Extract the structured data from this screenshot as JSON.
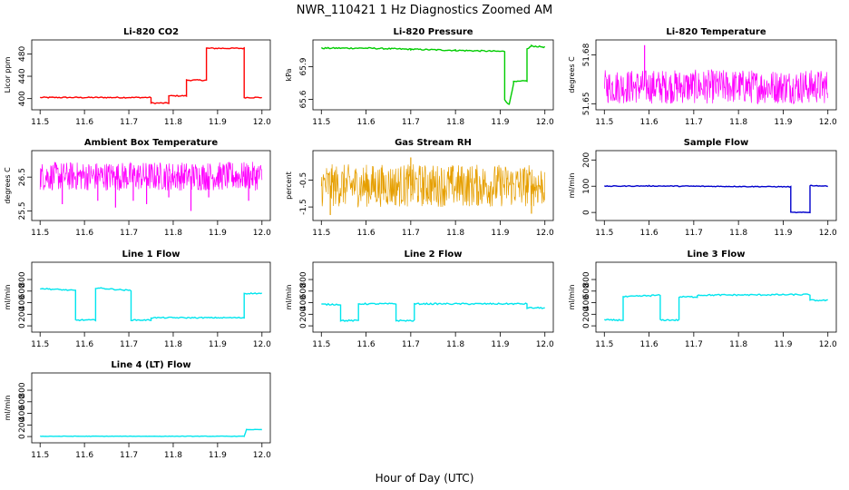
{
  "figure": {
    "title": "NWR_110421  1 Hz Diagnostics Zoomed AM",
    "xlabel": "Hour of Day (UTC)"
  },
  "chart_data": [
    {
      "type": "line",
      "title": "Li-820 CO2",
      "ylabel": "Licor ppm",
      "color": "#ff0000",
      "xlim": [
        11.5,
        12.0
      ],
      "ylim": [
        385,
        500
      ],
      "x_ticks": [
        "11.5",
        "11.6",
        "11.7",
        "11.8",
        "11.9",
        "12.0"
      ],
      "y_ticks": [
        "400",
        "440",
        "480"
      ],
      "noise": 1,
      "series": [
        {
          "x": [
            11.5,
            11.75
          ],
          "y": [
            402,
            402
          ]
        },
        {
          "x": [
            11.75,
            11.79
          ],
          "y": [
            392,
            392
          ]
        },
        {
          "x": [
            11.79,
            11.83
          ],
          "y": [
            405,
            405
          ]
        },
        {
          "x": [
            11.83,
            11.875
          ],
          "y": [
            433,
            433
          ]
        },
        {
          "x": [
            11.875,
            11.96
          ],
          "y": [
            490,
            490
          ]
        },
        {
          "x": [
            11.96,
            12.0
          ],
          "y": [
            402,
            402
          ]
        }
      ]
    },
    {
      "type": "line",
      "title": "Li-820 Pressure",
      "ylabel": "kPa",
      "color": "#00cc00",
      "xlim": [
        11.5,
        12.0
      ],
      "ylim": [
        65.53,
        66.12
      ],
      "x_ticks": [
        "11.5",
        "11.6",
        "11.7",
        "11.8",
        "11.9",
        "12.0"
      ],
      "y_ticks": [
        "65.6",
        "65.9"
      ],
      "noise": 0.006,
      "series": [
        {
          "x": [
            11.5,
            11.6,
            11.7,
            11.8,
            11.91
          ],
          "y": [
            66.07,
            66.07,
            66.06,
            66.05,
            66.04
          ]
        },
        {
          "x": [
            11.91,
            11.92,
            11.93
          ],
          "y": [
            65.6,
            65.55,
            65.75
          ]
        },
        {
          "x": [
            11.93,
            11.96
          ],
          "y": [
            65.76,
            65.77
          ]
        },
        {
          "x": [
            11.96,
            11.97,
            12.0
          ],
          "y": [
            66.06,
            66.09,
            66.08
          ]
        }
      ]
    },
    {
      "type": "line",
      "title": "Li-820 Temperature",
      "ylabel": "degrees C",
      "color": "#ff00ff",
      "xlim": [
        11.5,
        12.0
      ],
      "ylim": [
        51.648,
        51.6875
      ],
      "x_ticks": [
        "11.5",
        "11.6",
        "11.7",
        "11.8",
        "11.9",
        "12.0"
      ],
      "y_ticks": [
        "51.65",
        "51.68"
      ],
      "band": {
        "low": 51.65,
        "high": 51.671,
        "spikes": [
          {
            "x": 11.59,
            "y": 51.686
          }
        ]
      }
    },
    {
      "type": "line",
      "title": "Ambient Box Temperature",
      "ylabel": "degrees C",
      "color": "#ff00ff",
      "xlim": [
        11.5,
        12.0
      ],
      "ylim": [
        25.3,
        27.2
      ],
      "x_ticks": [
        "11.5",
        "11.6",
        "11.7",
        "11.8",
        "11.9",
        "12.0"
      ],
      "y_ticks": [
        "25.5",
        "26.5"
      ],
      "band": {
        "low": 26.1,
        "high": 26.95,
        "spikes": [
          {
            "x": 11.55,
            "y": 25.7
          },
          {
            "x": 11.63,
            "y": 25.8
          },
          {
            "x": 11.67,
            "y": 25.6
          },
          {
            "x": 11.71,
            "y": 25.8
          },
          {
            "x": 11.74,
            "y": 25.7
          },
          {
            "x": 11.79,
            "y": 25.9
          },
          {
            "x": 11.84,
            "y": 25.5
          },
          {
            "x": 11.88,
            "y": 25.9
          },
          {
            "x": 11.97,
            "y": 25.8
          }
        ]
      }
    },
    {
      "type": "line",
      "title": "Gas Stream RH",
      "ylabel": "percent",
      "color": "#e69f00",
      "xlim": [
        11.5,
        12.0
      ],
      "ylim": [
        -1.9,
        0.5
      ],
      "x_ticks": [
        "11.5",
        "11.6",
        "11.7",
        "11.8",
        "11.9",
        "12.0"
      ],
      "y_ticks": [
        "-1.5",
        "-0.5"
      ],
      "band": {
        "low": -1.5,
        "high": 0.1,
        "spikes": [
          {
            "x": 11.52,
            "y": -1.8
          },
          {
            "x": 11.97,
            "y": -1.75
          },
          {
            "x": 11.7,
            "y": 0.35
          }
        ]
      }
    },
    {
      "type": "line",
      "title": "Sample Flow",
      "ylabel": "ml/min",
      "color": "#0000cc",
      "xlim": [
        11.5,
        12.0
      ],
      "ylim": [
        -20,
        225
      ],
      "x_ticks": [
        "11.5",
        "11.6",
        "11.7",
        "11.8",
        "11.9",
        "12.0"
      ],
      "y_ticks": [
        "0",
        "100",
        "200"
      ],
      "noise": 1.5,
      "series": [
        {
          "x": [
            11.5,
            11.6,
            11.7,
            11.8,
            11.917
          ],
          "y": [
            100,
            101,
            100,
            99,
            98
          ]
        },
        {
          "x": [
            11.917,
            11.917
          ],
          "y": [
            98,
            0
          ]
        },
        {
          "x": [
            11.917,
            11.96
          ],
          "y": [
            0,
            0
          ]
        },
        {
          "x": [
            11.96,
            11.96
          ],
          "y": [
            0,
            103
          ]
        },
        {
          "x": [
            11.96,
            12.0
          ],
          "y": [
            103,
            100
          ]
        }
      ]
    },
    {
      "type": "line",
      "title": "Line 1 Flow",
      "ylabel": "ml/min",
      "color": "#00e5ee",
      "xlim": [
        11.5,
        12.0
      ],
      "ylim": [
        -60,
        1050
      ],
      "x_ticks": [
        "11.5",
        "11.6",
        "11.7",
        "11.8",
        "11.9",
        "12.0"
      ],
      "y_ticks": [
        "0",
        "200",
        "400",
        "600",
        "800"
      ],
      "noise": 10,
      "series": [
        {
          "x": [
            11.5,
            11.58
          ],
          "y": [
            645,
            610
          ]
        },
        {
          "x": [
            11.58,
            11.625
          ],
          "y": [
            100,
            100
          ]
        },
        {
          "x": [
            11.625,
            11.705
          ],
          "y": [
            655,
            610
          ]
        },
        {
          "x": [
            11.705,
            11.75
          ],
          "y": [
            100,
            100
          ]
        },
        {
          "x": [
            11.75,
            11.96
          ],
          "y": [
            140,
            140
          ]
        },
        {
          "x": [
            11.96,
            12.0
          ],
          "y": [
            560,
            560
          ]
        }
      ]
    },
    {
      "type": "line",
      "title": "Line 2 Flow",
      "ylabel": "ml/min",
      "color": "#00e5ee",
      "xlim": [
        11.5,
        12.0
      ],
      "ylim": [
        -60,
        1050
      ],
      "x_ticks": [
        "11.5",
        "11.6",
        "11.7",
        "11.8",
        "11.9",
        "12.0"
      ],
      "y_ticks": [
        "0",
        "200",
        "400",
        "600",
        "800"
      ],
      "noise": 12,
      "series": [
        {
          "x": [
            11.5,
            11.543
          ],
          "y": [
            370,
            370
          ]
        },
        {
          "x": [
            11.543,
            11.583
          ],
          "y": [
            90,
            90
          ]
        },
        {
          "x": [
            11.583,
            11.667
          ],
          "y": [
            380,
            380
          ]
        },
        {
          "x": [
            11.667,
            11.708
          ],
          "y": [
            90,
            90
          ]
        },
        {
          "x": [
            11.708,
            11.96
          ],
          "y": [
            380,
            380
          ]
        },
        {
          "x": [
            11.96,
            12.0
          ],
          "y": [
            310,
            310
          ]
        }
      ]
    },
    {
      "type": "line",
      "title": "Line 3 Flow",
      "ylabel": "ml/min",
      "color": "#00e5ee",
      "xlim": [
        11.5,
        12.0
      ],
      "ylim": [
        -60,
        1050
      ],
      "x_ticks": [
        "11.5",
        "11.6",
        "11.7",
        "11.8",
        "11.9",
        "12.0"
      ],
      "y_ticks": [
        "0",
        "200",
        "400",
        "600",
        "800"
      ],
      "noise": 12,
      "series": [
        {
          "x": [
            11.5,
            11.542
          ],
          "y": [
            100,
            100
          ]
        },
        {
          "x": [
            11.542,
            11.625
          ],
          "y": [
            500,
            530
          ]
        },
        {
          "x": [
            11.625,
            11.667
          ],
          "y": [
            100,
            100
          ]
        },
        {
          "x": [
            11.667,
            11.708
          ],
          "y": [
            500,
            500
          ]
        },
        {
          "x": [
            11.708,
            11.96
          ],
          "y": [
            530,
            540
          ]
        },
        {
          "x": [
            11.96,
            12.0
          ],
          "y": [
            440,
            440
          ]
        }
      ]
    },
    {
      "type": "line",
      "title": "Line 4 (LT) Flow",
      "ylabel": "ml/min",
      "color": "#00e5ee",
      "xlim": [
        11.5,
        12.0
      ],
      "ylim": [
        -60,
        1050
      ],
      "x_ticks": [
        "11.5",
        "11.6",
        "11.7",
        "11.8",
        "11.9",
        "12.0"
      ],
      "y_ticks": [
        "0",
        "200",
        "400",
        "600",
        "800"
      ],
      "noise": 3,
      "series": [
        {
          "x": [
            11.5,
            11.96
          ],
          "y": [
            5,
            5
          ]
        },
        {
          "x": [
            11.96,
            11.965
          ],
          "y": [
            5,
            120
          ]
        },
        {
          "x": [
            11.965,
            12.0
          ],
          "y": [
            120,
            120
          ]
        }
      ]
    }
  ]
}
